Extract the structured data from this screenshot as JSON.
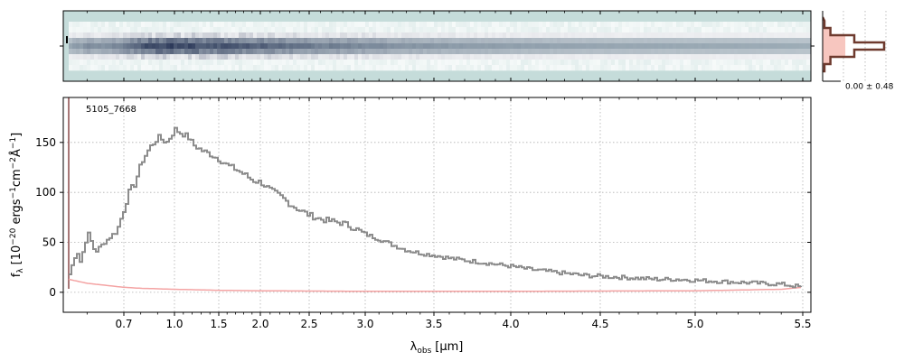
{
  "figure": {
    "object_label": "5105_7668",
    "xlabel_main": "λ",
    "xlabel_sub": "obs",
    "xlabel_unit": "[μm]",
    "ylabel_main": "f",
    "ylabel_sub": "λ",
    "ylabel_unit_a": "[10",
    "ylabel_unit_a_exp": "−20",
    "ylabel_unit_b": " ergs",
    "ylabel_unit_b_exp": "−1",
    "ylabel_unit_c": "cm",
    "ylabel_unit_c_exp": "−2",
    "ylabel_unit_d": "Å",
    "ylabel_unit_d_exp": "−1",
    "ylabel_unit_e": "]",
    "profile_label": "0.00 ± 0.48"
  },
  "colors": {
    "spectrum": "#8c8c8c",
    "error": "#f4a3a3",
    "profile_line": "#6e3a2e",
    "profile_fill": "#f7c6bf",
    "wave_limit_line": "#8b4a4a",
    "grid": "#b0b0b0",
    "image_background": "#c5dcda",
    "image_trace": "#2d3a5a"
  },
  "chart_data": [
    {
      "type": "line",
      "title": "",
      "xlabel": "λobs [μm]",
      "ylabel": "fλ [10−20 ergs−1cm−2Å−1]",
      "xscale": "nonlinear (wavelength tick spacing compressed toward long wavelengths)",
      "x_ticks": [
        "0.7",
        "1.0",
        "1.5",
        "2.0",
        "2.5",
        "3.0",
        "3.5",
        "4.0",
        "4.5",
        "5.0",
        "5.5"
      ],
      "x_tick_values": [
        0.7,
        1.0,
        1.5,
        2.0,
        2.5,
        3.0,
        3.5,
        4.0,
        4.5,
        5.0,
        5.5
      ],
      "y_ticks": [
        "0",
        "50",
        "100",
        "150"
      ],
      "y_tick_values": [
        0,
        50,
        100,
        150
      ],
      "xlim": [
        0.52,
        5.55
      ],
      "ylim": [
        -20,
        195
      ],
      "grid": true,
      "annotation": "5105_7668",
      "series": [
        {
          "role": "spectrum",
          "x": [
            0.55,
            0.57,
            0.58,
            0.6,
            0.62,
            0.64,
            0.66,
            0.68,
            0.7,
            0.73,
            0.76,
            0.8,
            0.85,
            0.9,
            0.95,
            1.0,
            1.05,
            1.1,
            1.15,
            1.2,
            1.3,
            1.4,
            1.5,
            1.6,
            1.7,
            1.8,
            1.9,
            2.0,
            2.1,
            2.2,
            2.3,
            2.4,
            2.5,
            2.6,
            2.7,
            2.8,
            2.9,
            3.0,
            3.1,
            3.2,
            3.3,
            3.4,
            3.5,
            3.6,
            3.7,
            3.8,
            3.9,
            4.0,
            4.1,
            4.2,
            4.3,
            4.4,
            4.5,
            4.6,
            4.7,
            4.8,
            4.9,
            5.0,
            5.1,
            5.2,
            5.3,
            5.4,
            5.5
          ],
          "y": [
            18,
            42,
            30,
            60,
            40,
            48,
            55,
            62,
            85,
            102,
            108,
            130,
            145,
            155,
            150,
            163,
            160,
            158,
            155,
            148,
            142,
            138,
            133,
            127,
            123,
            118,
            112,
            110,
            102,
            96,
            88,
            82,
            77,
            73,
            71,
            69,
            64,
            58,
            53,
            47,
            42,
            39,
            37,
            34,
            32,
            30,
            28,
            26,
            23,
            21,
            19,
            17,
            16,
            15,
            14,
            13,
            13,
            12,
            11,
            10,
            9,
            8,
            5
          ]
        },
        {
          "role": "uncertainty",
          "x": [
            0.55,
            0.6,
            0.7,
            0.8,
            1.0,
            1.5,
            2.0,
            3.0,
            4.0,
            5.0,
            5.4,
            5.5
          ],
          "y": [
            13,
            9,
            5,
            4,
            3,
            2,
            1.5,
            1,
            1,
            1.5,
            3,
            5
          ]
        }
      ]
    },
    {
      "type": "heatmap",
      "title": "",
      "description_role": "2D spectrum cutout (top panel), trace centered vertically, brightest near λ 0.8–1.5 μm, fading toward 5.5 μm"
    },
    {
      "type": "line",
      "title": "",
      "annotation": "0.00 ± 0.48",
      "x": [
        0.0,
        0.1,
        0.5,
        1.0,
        0.5,
        0.1,
        0.0
      ],
      "y_rows": [
        -3,
        -2,
        -1,
        0,
        1,
        2,
        3
      ],
      "role": "spatial profile (stepped)"
    }
  ]
}
